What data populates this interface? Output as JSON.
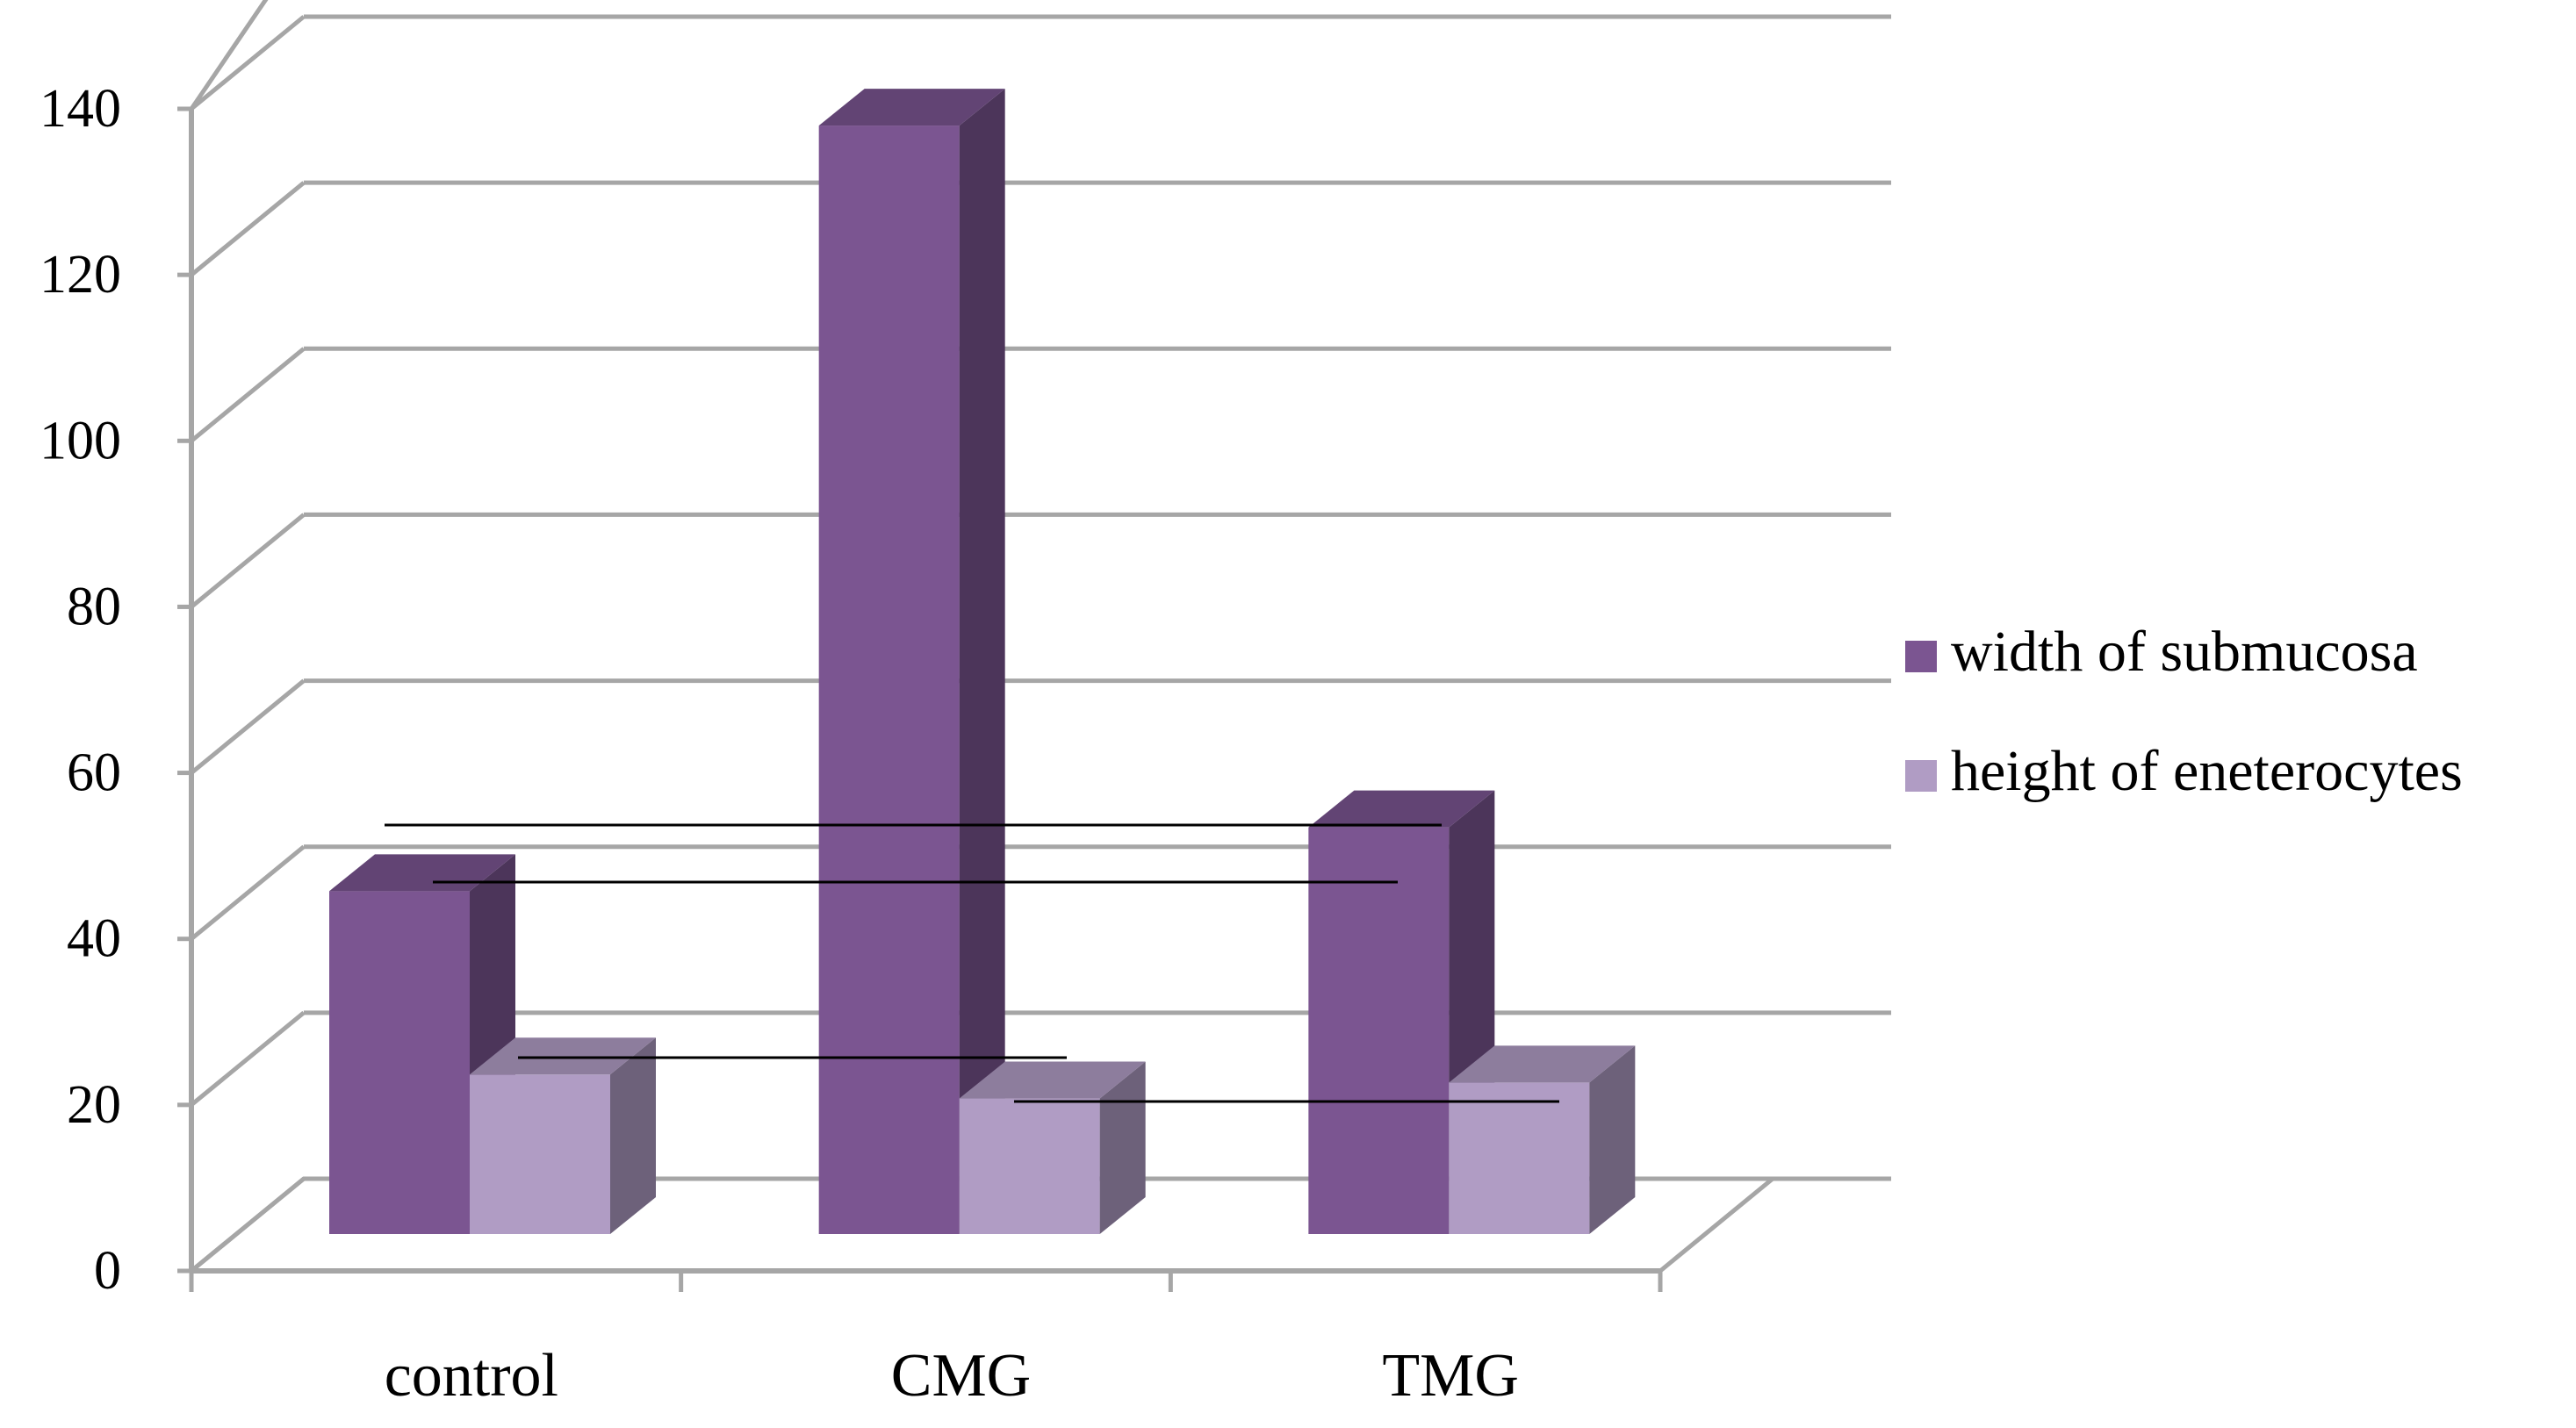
{
  "chart_data": {
    "type": "bar",
    "style": "3d-clustered-column",
    "categories": [
      "control",
      "CMG",
      "TMG"
    ],
    "series": [
      {
        "name": "width of submucosa",
        "values": [
          43,
          139,
          51
        ],
        "color": "#7b5591"
      },
      {
        "name": "height of eneterocytes",
        "values": [
          20,
          17,
          19
        ],
        "color": "#b09cc4"
      }
    ],
    "ylim": [
      0,
      140
    ],
    "yticks": [
      0,
      20,
      40,
      60,
      80,
      100,
      120,
      140
    ],
    "grid": true,
    "legend": "right",
    "significance_brackets": 5
  }
}
